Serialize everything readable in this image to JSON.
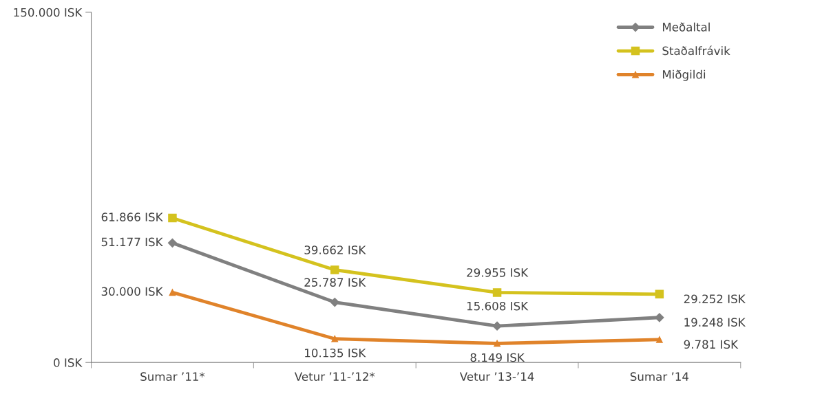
{
  "chart_data": {
    "type": "line",
    "categories": [
      "Sumar ’11*",
      "Vetur ’11-’12*",
      "Vetur ’13-’14",
      "Sumar ’14"
    ],
    "ylim": [
      0,
      150000
    ],
    "yticks": [
      {
        "value": 0,
        "label": "0 ISK"
      },
      {
        "value": 150000,
        "label": "150.000 ISK"
      }
    ],
    "grid": false,
    "legend": "top right",
    "line_style": "solid",
    "series": [
      {
        "name": "Meðaltal",
        "color": "#808080",
        "marker": "diamond",
        "values": [
          51177,
          25787,
          15608,
          19248
        ],
        "value_labels": [
          "51.177 ISK",
          "25.787 ISK",
          "15.608 ISK",
          "19.248 ISK"
        ]
      },
      {
        "name": "Staðalfrávik",
        "color": "#d4c21e",
        "marker": "square",
        "values": [
          61866,
          39662,
          29955,
          29252
        ],
        "value_labels": [
          "61.866 ISK",
          "39.662 ISK",
          "29.955 ISK",
          "29.252 ISK"
        ]
      },
      {
        "name": "Miðgildi",
        "color": "#e0832a",
        "marker": "triangle",
        "values": [
          30000,
          10135,
          8149,
          9781
        ],
        "value_labels": [
          "30.000 ISK",
          "10.135 ISK",
          "8.149 ISK",
          "9.781 ISK"
        ]
      }
    ]
  }
}
